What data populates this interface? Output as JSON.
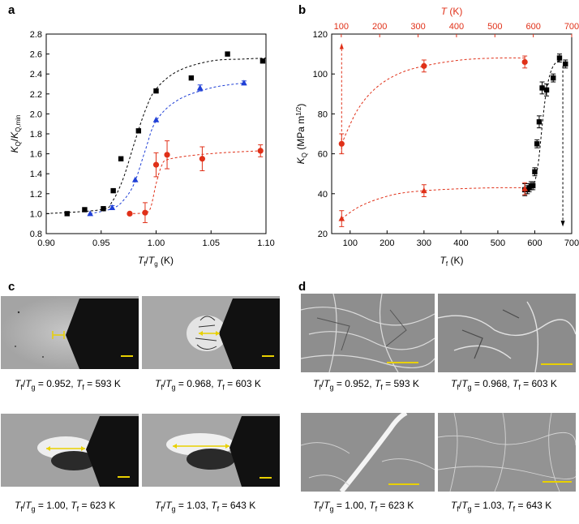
{
  "panels": {
    "a": "a",
    "b": "b",
    "c": "c",
    "d": "d"
  },
  "chart_data": [
    {
      "id": "a",
      "type": "scatter",
      "xlabel": "Tf/Tg (K)",
      "ylabel": "KQ/KQ,min",
      "xlim": [
        0.9,
        1.1
      ],
      "ylim": [
        0.8,
        2.8
      ],
      "xticks": [
        "0.90",
        "0.95",
        "1.00",
        "1.05",
        "1.10"
      ],
      "yticks": [
        "0.8",
        "1.0",
        "1.2",
        "1.4",
        "1.6",
        "1.8",
        "2.0",
        "2.2",
        "2.4",
        "2.6",
        "2.8"
      ],
      "series": [
        {
          "name": "black squares",
          "color": "#000000",
          "marker": "square",
          "x": [
            0.919,
            0.935,
            0.952,
            0.961,
            0.968,
            0.984,
            1.0,
            1.032,
            1.065,
            1.097
          ],
          "y": [
            1.0,
            1.04,
            1.05,
            1.23,
            1.55,
            1.83,
            2.23,
            2.36,
            2.6,
            2.53
          ],
          "err": [
            0,
            0,
            0,
            0,
            0,
            0,
            0,
            0,
            0,
            0
          ]
        },
        {
          "name": "blue triangles",
          "color": "#1f3fd6",
          "marker": "triangle",
          "x": [
            0.94,
            0.96,
            0.981,
            1.0,
            1.04,
            1.08
          ],
          "y": [
            1.0,
            1.06,
            1.34,
            1.94,
            2.26,
            2.31
          ],
          "err": [
            0,
            0.02,
            0,
            0,
            0.03,
            0.02
          ]
        },
        {
          "name": "red circles",
          "color": "#e03018",
          "marker": "circle",
          "x": [
            0.976,
            0.99,
            1.0,
            1.01,
            1.042,
            1.095
          ],
          "y": [
            1.0,
            1.01,
            1.49,
            1.59,
            1.55,
            1.63
          ],
          "err": [
            0,
            0.1,
            0.12,
            0.14,
            0.12,
            0.06
          ]
        }
      ],
      "fits": [
        {
          "color": "#000000",
          "x": [
            0.9,
            0.95,
            0.96,
            0.97,
            0.98,
            0.99,
            1.0,
            1.02,
            1.05,
            1.08,
            1.1
          ],
          "y": [
            1.0,
            1.04,
            1.12,
            1.35,
            1.7,
            2.03,
            2.25,
            2.43,
            2.53,
            2.55,
            2.56
          ]
        },
        {
          "color": "#1f3fd6",
          "x": [
            0.94,
            0.96,
            0.97,
            0.98,
            0.99,
            1.0,
            1.02,
            1.05,
            1.08
          ],
          "y": [
            1.0,
            1.05,
            1.13,
            1.3,
            1.63,
            1.93,
            2.14,
            2.26,
            2.31
          ]
        },
        {
          "color": "#e03018",
          "x": [
            0.975,
            0.99,
            0.995,
            1.0,
            1.005,
            1.01,
            1.03,
            1.06,
            1.095
          ],
          "y": [
            1.0,
            1.01,
            1.06,
            1.3,
            1.48,
            1.54,
            1.58,
            1.61,
            1.63
          ]
        }
      ]
    },
    {
      "id": "b",
      "type": "scatter",
      "xlabel": "Tf (K)",
      "ylabel": "KQ (MPa m1/2)",
      "top_xlabel": "T (K)",
      "xlim": [
        50,
        700
      ],
      "ylim": [
        20,
        120
      ],
      "xticks": [
        "100",
        "200",
        "300",
        "400",
        "500",
        "600",
        "700"
      ],
      "yticks": [
        "20",
        "40",
        "60",
        "80",
        "100",
        "120"
      ],
      "top_xlim": [
        75,
        700
      ],
      "top_xticks": [
        "100",
        "200",
        "300",
        "400",
        "500",
        "600",
        "700"
      ],
      "series": [
        {
          "name": "black squares",
          "color": "#000000",
          "marker": "square",
          "x": [
            573,
            580,
            585,
            590,
            595,
            600,
            606,
            612,
            620,
            632,
            650,
            667,
            683
          ],
          "y": [
            42,
            42,
            43,
            44,
            44,
            51,
            65,
            76,
            93,
            92,
            98,
            108,
            105
          ],
          "err": [
            3,
            2,
            2,
            2,
            2,
            2,
            2,
            3,
            3,
            3,
            2,
            2,
            2
          ]
        },
        {
          "name": "red circles",
          "color": "#e03018",
          "marker": "circle",
          "x": [
            77,
            300,
            573
          ],
          "y": [
            65,
            104,
            106
          ],
          "err": [
            5,
            3,
            3
          ]
        },
        {
          "name": "red triangles",
          "color": "#e03018",
          "marker": "triangle",
          "x": [
            77,
            300,
            573
          ],
          "y": [
            27.5,
            41.5,
            42.5
          ],
          "err": [
            4,
            3,
            3
          ]
        }
      ],
      "fits": [
        {
          "color": "#000000",
          "x": [
            570,
            590,
            600,
            610,
            620,
            630,
            640,
            650,
            660,
            670
          ],
          "y": [
            42,
            43,
            46,
            56,
            74,
            90,
            99,
            104,
            106,
            107
          ]
        },
        {
          "color": "#e03018",
          "x": [
            77,
            120,
            170,
            230,
            300,
            400,
            500,
            573
          ],
          "y": [
            65,
            82,
            93,
            100,
            104,
            107,
            108,
            108
          ]
        },
        {
          "color": "#e03018",
          "x": [
            77,
            120,
            170,
            230,
            300,
            400,
            500,
            573
          ],
          "y": [
            27.5,
            33,
            37,
            40,
            41.5,
            42.5,
            43,
            43
          ]
        }
      ]
    }
  ],
  "captions": {
    "c1": [
      "0.952",
      "593"
    ],
    "c2": [
      "0.968",
      "603"
    ],
    "c3": [
      "1.00",
      "623"
    ],
    "c4": [
      "1.03",
      "643"
    ],
    "d1": [
      "0.952",
      "593"
    ],
    "d2": [
      "0.968",
      "603"
    ],
    "d3": [
      "1.00",
      "623"
    ],
    "d4": [
      "1.03",
      "643"
    ]
  },
  "symbols": {
    "T": "T",
    "f": "f",
    "g": "g",
    "K": "K",
    "eq": " = ",
    "slash": "/",
    "comma": ", "
  }
}
